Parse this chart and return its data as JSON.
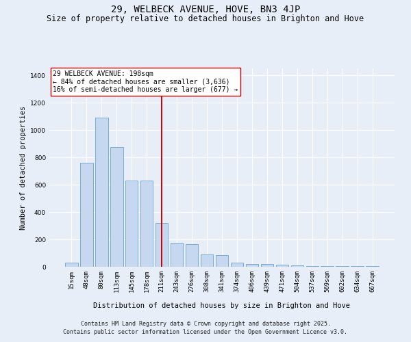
{
  "title": "29, WELBECK AVENUE, HOVE, BN3 4JP",
  "subtitle": "Size of property relative to detached houses in Brighton and Hove",
  "xlabel": "Distribution of detached houses by size in Brighton and Hove",
  "ylabel": "Number of detached properties",
  "categories": [
    "15sqm",
    "48sqm",
    "80sqm",
    "113sqm",
    "145sqm",
    "178sqm",
    "211sqm",
    "243sqm",
    "276sqm",
    "308sqm",
    "341sqm",
    "374sqm",
    "406sqm",
    "439sqm",
    "471sqm",
    "504sqm",
    "537sqm",
    "569sqm",
    "602sqm",
    "634sqm",
    "667sqm"
  ],
  "values": [
    28,
    760,
    1090,
    875,
    630,
    630,
    320,
    175,
    165,
    90,
    85,
    28,
    22,
    18,
    14,
    10,
    5,
    5,
    3,
    3,
    3
  ],
  "bar_color": "#c5d8f0",
  "bar_edgecolor": "#7aadd4",
  "bar_linewidth": 0.7,
  "vline_x": 6,
  "vline_color": "#cc0000",
  "annotation_text": "29 WELBECK AVENUE: 198sqm\n← 84% of detached houses are smaller (3,636)\n16% of semi-detached houses are larger (677) →",
  "annotation_box_facecolor": "#ffffff",
  "annotation_box_edgecolor": "#cc0000",
  "ylim": [
    0,
    1450
  ],
  "yticks": [
    0,
    200,
    400,
    600,
    800,
    1000,
    1200,
    1400
  ],
  "background_color": "#e8eef8",
  "grid_color": "#ffffff",
  "footer_line1": "Contains HM Land Registry data © Crown copyright and database right 2025.",
  "footer_line2": "Contains public sector information licensed under the Open Government Licence v3.0.",
  "title_fontsize": 10,
  "subtitle_fontsize": 8.5,
  "axis_label_fontsize": 7.5,
  "tick_fontsize": 6.5,
  "annotation_fontsize": 7,
  "footer_fontsize": 6
}
